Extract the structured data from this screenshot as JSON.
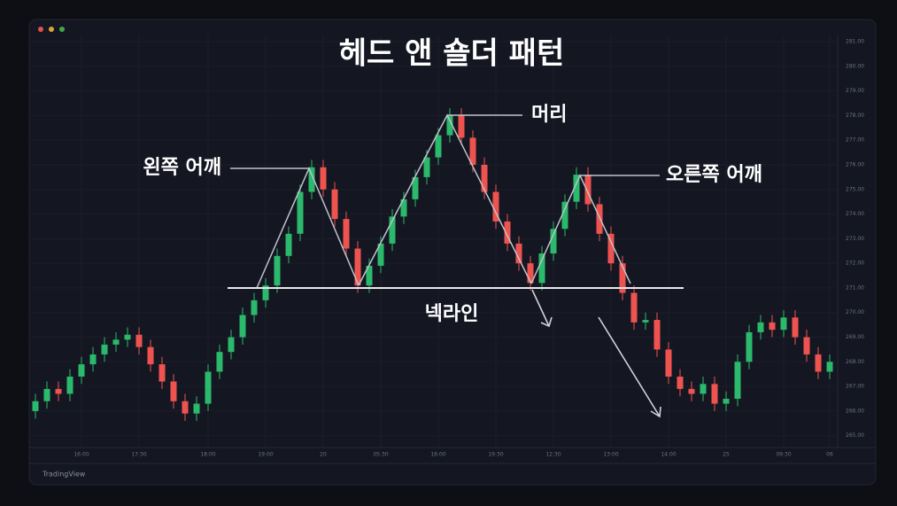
{
  "chart_data": {
    "type": "candlestick",
    "title": "헤드 앤 숄더 패턴",
    "annotations": {
      "head": "머리",
      "left_shoulder": "왼쪽 어깨",
      "right_shoulder": "오른쪽 어깨",
      "neckline": "넥라인"
    },
    "source": "TradingView",
    "up_color": "#2bb96b",
    "down_color": "#ef5350",
    "categories": [
      null,
      null,
      null,
      null,
      "16:00",
      null,
      null,
      null,
      null,
      "17:30",
      null,
      null,
      null,
      null,
      null,
      "18:00",
      null,
      null,
      null,
      null,
      "19:00",
      null,
      null,
      null,
      null,
      "20",
      null,
      null,
      null,
      null,
      "05:30",
      null,
      null,
      null,
      null,
      "16:00",
      null,
      null,
      null,
      null,
      "19:30",
      null,
      null,
      null,
      null,
      "12:30",
      null,
      null,
      null,
      null,
      "13:00",
      null,
      null,
      null,
      null,
      "14:00",
      null,
      null,
      null,
      null,
      "25",
      null,
      null,
      null,
      null,
      "09:30",
      null,
      null,
      null,
      "06"
    ],
    "open": [
      266.0,
      266.4,
      266.9,
      266.7,
      267.4,
      267.9,
      268.3,
      268.7,
      268.9,
      269.1,
      268.6,
      267.9,
      267.2,
      266.4,
      265.9,
      266.3,
      267.6,
      268.4,
      269.0,
      269.9,
      270.5,
      271.1,
      272.3,
      273.2,
      274.9,
      275.9,
      275.0,
      273.8,
      272.6,
      271.1,
      271.9,
      272.8,
      273.9,
      274.6,
      275.5,
      276.3,
      277.2,
      278.0,
      277.1,
      276.0,
      274.9,
      273.7,
      272.8,
      272.0,
      271.2,
      272.4,
      273.4,
      274.5,
      275.6,
      274.4,
      273.2,
      272.0,
      270.8,
      269.6,
      269.7,
      268.5,
      267.4,
      266.9,
      266.7,
      267.1,
      266.3,
      266.5,
      268.0,
      269.2,
      269.6,
      269.3,
      269.8,
      269.0,
      268.3,
      267.6
    ],
    "high": [
      266.7,
      267.2,
      267.2,
      267.7,
      268.2,
      268.6,
      269.0,
      269.2,
      269.4,
      269.4,
      268.9,
      268.2,
      267.5,
      266.7,
      266.6,
      267.9,
      268.7,
      269.3,
      270.2,
      270.8,
      271.4,
      272.6,
      273.5,
      275.2,
      276.2,
      276.2,
      275.3,
      274.1,
      272.9,
      272.2,
      273.1,
      274.2,
      274.9,
      275.8,
      276.6,
      277.5,
      278.3,
      278.3,
      277.4,
      276.3,
      275.2,
      274.0,
      273.1,
      272.3,
      272.7,
      273.7,
      274.8,
      275.9,
      275.9,
      274.7,
      273.5,
      272.3,
      271.1,
      270.0,
      270.0,
      268.8,
      267.7,
      267.2,
      267.4,
      267.4,
      266.8,
      268.3,
      269.5,
      269.9,
      269.9,
      270.1,
      270.1,
      269.3,
      268.6,
      268.3
    ],
    "low": [
      265.7,
      266.1,
      266.4,
      266.4,
      267.1,
      267.6,
      268.0,
      268.4,
      268.6,
      268.3,
      267.6,
      266.9,
      266.1,
      265.6,
      265.6,
      266.0,
      267.3,
      268.1,
      268.7,
      269.6,
      270.2,
      270.8,
      272.0,
      272.9,
      274.6,
      274.7,
      273.5,
      272.3,
      270.8,
      270.8,
      271.6,
      272.5,
      273.6,
      274.3,
      275.2,
      276.0,
      276.9,
      276.8,
      275.7,
      274.6,
      273.4,
      272.5,
      271.7,
      270.9,
      270.9,
      272.1,
      273.1,
      274.2,
      274.1,
      272.9,
      271.7,
      270.5,
      269.3,
      269.3,
      268.2,
      267.1,
      266.6,
      266.4,
      266.4,
      266.0,
      266.0,
      266.2,
      267.7,
      268.9,
      269.0,
      269.0,
      268.7,
      268.0,
      267.3,
      267.3
    ],
    "close": [
      266.4,
      266.9,
      266.7,
      267.4,
      267.9,
      268.3,
      268.7,
      268.9,
      269.1,
      268.6,
      267.9,
      267.2,
      266.4,
      265.9,
      266.3,
      267.6,
      268.4,
      269.0,
      269.9,
      270.5,
      271.1,
      272.3,
      273.2,
      274.9,
      275.9,
      275.0,
      273.8,
      272.6,
      271.1,
      271.9,
      272.8,
      273.9,
      274.6,
      275.5,
      276.3,
      277.2,
      278.0,
      277.1,
      276.0,
      274.9,
      273.7,
      272.8,
      272.0,
      271.2,
      272.4,
      273.4,
      274.5,
      275.6,
      274.4,
      273.2,
      272.0,
      270.8,
      269.6,
      269.7,
      268.5,
      267.4,
      266.9,
      266.7,
      267.1,
      266.3,
      266.5,
      268.0,
      269.2,
      269.6,
      269.3,
      269.8,
      269.0,
      268.3,
      267.6,
      268.0
    ],
    "ylim": [
      264.7,
      281.3
    ],
    "yticks": [
      {
        "value": 281,
        "label": "281.00"
      },
      {
        "value": 280,
        "label": "280.00"
      },
      {
        "value": 279,
        "label": "279.00"
      },
      {
        "value": 278,
        "label": "278.00"
      },
      {
        "value": 277,
        "label": "277.00"
      },
      {
        "value": 276,
        "label": "276.00"
      },
      {
        "value": 275,
        "label": "275.00"
      },
      {
        "value": 274,
        "label": "274.00"
      },
      {
        "value": 273,
        "label": "273.00"
      },
      {
        "value": 272,
        "label": "272.00"
      },
      {
        "value": 271,
        "label": "271.00"
      },
      {
        "value": 270,
        "label": "270.00"
      },
      {
        "value": 269,
        "label": "269.00"
      },
      {
        "value": 268,
        "label": "268.00"
      },
      {
        "value": 267,
        "label": "267.00"
      },
      {
        "value": 266,
        "label": "266.00"
      },
      {
        "value": 265,
        "label": "265.00"
      }
    ],
    "grid": true
  }
}
